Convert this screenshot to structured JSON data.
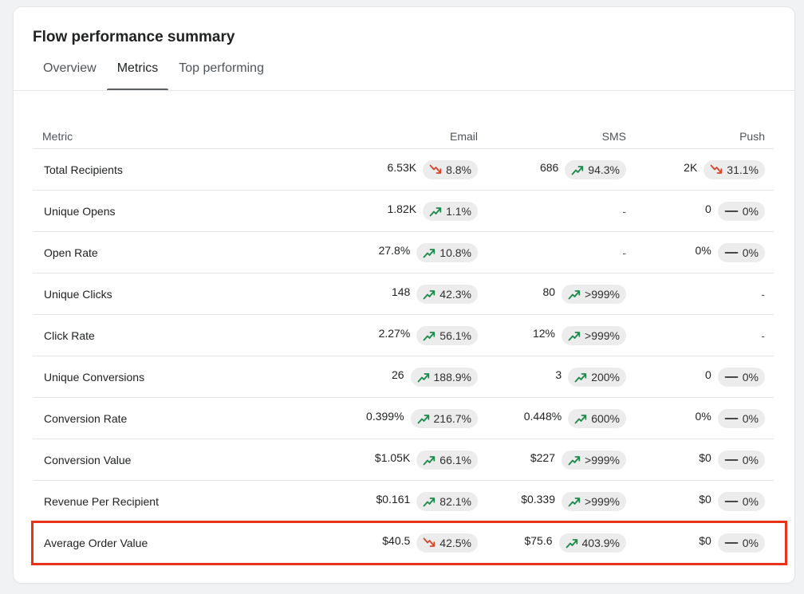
{
  "card": {
    "title": "Flow performance summary",
    "tabs": [
      {
        "label": "Overview",
        "active": false
      },
      {
        "label": "Metrics",
        "active": true
      },
      {
        "label": "Top performing",
        "active": false
      }
    ]
  },
  "table": {
    "headers": {
      "metric": "Metric",
      "email": "Email",
      "sms": "SMS",
      "push": "Push"
    },
    "rows": [
      {
        "metric": "Total Recipients",
        "email": {
          "value": "6.53K",
          "change": "8.8%",
          "trend": "down"
        },
        "sms": {
          "value": "686",
          "change": "94.3%",
          "trend": "up"
        },
        "push": {
          "value": "2K",
          "change": "31.1%",
          "trend": "down"
        }
      },
      {
        "metric": "Unique Opens",
        "email": {
          "value": "1.82K",
          "change": "1.1%",
          "trend": "up"
        },
        "sms": {
          "value": "-"
        },
        "push": {
          "value": "0",
          "change": "0%",
          "trend": "flat"
        }
      },
      {
        "metric": "Open Rate",
        "email": {
          "value": "27.8%",
          "change": "10.8%",
          "trend": "up"
        },
        "sms": {
          "value": "-"
        },
        "push": {
          "value": "0%",
          "change": "0%",
          "trend": "flat"
        }
      },
      {
        "metric": "Unique Clicks",
        "email": {
          "value": "148",
          "change": "42.3%",
          "trend": "up"
        },
        "sms": {
          "value": "80",
          "change": ">999%",
          "trend": "up"
        },
        "push": {
          "value": "-"
        }
      },
      {
        "metric": "Click Rate",
        "email": {
          "value": "2.27%",
          "change": "56.1%",
          "trend": "up"
        },
        "sms": {
          "value": "12%",
          "change": ">999%",
          "trend": "up"
        },
        "push": {
          "value": "-"
        }
      },
      {
        "metric": "Unique Conversions",
        "email": {
          "value": "26",
          "change": "188.9%",
          "trend": "up"
        },
        "sms": {
          "value": "3",
          "change": "200%",
          "trend": "up"
        },
        "push": {
          "value": "0",
          "change": "0%",
          "trend": "flat"
        }
      },
      {
        "metric": "Conversion Rate",
        "email": {
          "value": "0.399%",
          "change": "216.7%",
          "trend": "up"
        },
        "sms": {
          "value": "0.448%",
          "change": "600%",
          "trend": "up"
        },
        "push": {
          "value": "0%",
          "change": "0%",
          "trend": "flat"
        }
      },
      {
        "metric": "Conversion Value",
        "email": {
          "value": "$1.05K",
          "change": "66.1%",
          "trend": "up"
        },
        "sms": {
          "value": "$227",
          "change": ">999%",
          "trend": "up"
        },
        "push": {
          "value": "$0",
          "change": "0%",
          "trend": "flat"
        }
      },
      {
        "metric": "Revenue Per Recipient",
        "email": {
          "value": "$0.161",
          "change": "82.1%",
          "trend": "up"
        },
        "sms": {
          "value": "$0.339",
          "change": ">999%",
          "trend": "up"
        },
        "push": {
          "value": "$0",
          "change": "0%",
          "trend": "flat"
        }
      },
      {
        "metric": "Average Order Value",
        "email": {
          "value": "$40.5",
          "change": "42.5%",
          "trend": "down"
        },
        "sms": {
          "value": "$75.6",
          "change": "403.9%",
          "trend": "up"
        },
        "push": {
          "value": "$0",
          "change": "0%",
          "trend": "flat"
        }
      }
    ]
  },
  "icons": {
    "up": "trend-up-icon",
    "down": "trend-down-icon",
    "flat": "trend-flat-icon"
  },
  "colors": {
    "up": "#1a8a4a",
    "down": "#d7452a",
    "flat": "#303030",
    "highlight": "#e8321a",
    "badge_bg": "#ececec"
  }
}
